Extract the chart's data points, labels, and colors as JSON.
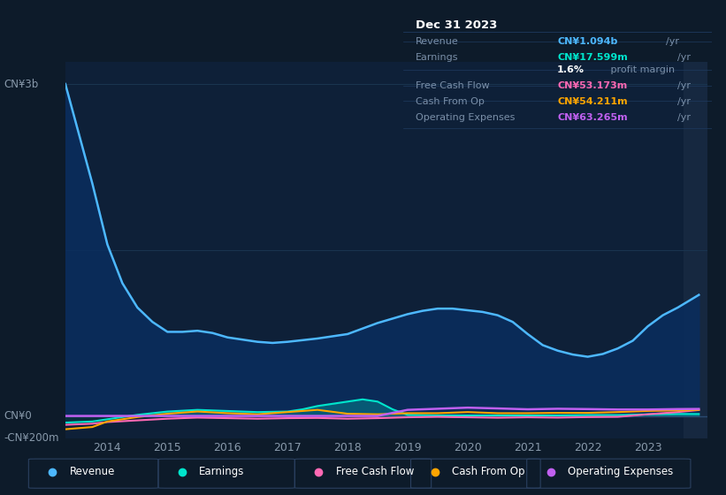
{
  "bg_color": "#0d1b2a",
  "plot_bg_color": "#0e2038",
  "right_panel_color": "#162840",
  "grid_color": "#1a3550",
  "title_box_bg": "#050d18",
  "title_box": {
    "date": "Dec 31 2023",
    "rows": [
      {
        "label": "Revenue",
        "value": "CN¥1.094b",
        "unit": "/yr",
        "value_color": "#4db8ff"
      },
      {
        "label": "Earnings",
        "value": "CN¥17.599m",
        "unit": "/yr",
        "value_color": "#00e5cc"
      },
      {
        "label": "",
        "value": "1.6%",
        "unit": " profit margin",
        "value_color": "#ffffff"
      },
      {
        "label": "Free Cash Flow",
        "value": "CN¥53.173m",
        "unit": "/yr",
        "value_color": "#ff69b4"
      },
      {
        "label": "Cash From Op",
        "value": "CN¥54.211m",
        "unit": "/yr",
        "value_color": "#ffa500"
      },
      {
        "label": "Operating Expenses",
        "value": "CN¥63.265m",
        "unit": "/yr",
        "value_color": "#c060f0"
      }
    ]
  },
  "ylabel_top": "CN¥3b",
  "ylabel_zero": "CN¥0",
  "ylabel_neg": "-CN¥200m",
  "legend": [
    {
      "label": "Revenue",
      "color": "#4db8ff"
    },
    {
      "label": "Earnings",
      "color": "#00e5cc"
    },
    {
      "label": "Free Cash Flow",
      "color": "#ff69b4"
    },
    {
      "label": "Cash From Op",
      "color": "#ffa500"
    },
    {
      "label": "Operating Expenses",
      "color": "#c060f0"
    }
  ],
  "x_ticks": [
    2014,
    2015,
    2016,
    2017,
    2018,
    2019,
    2020,
    2021,
    2022,
    2023
  ],
  "revenue": {
    "years": [
      2013.3,
      2013.5,
      2013.75,
      2014.0,
      2014.25,
      2014.5,
      2014.75,
      2015.0,
      2015.25,
      2015.5,
      2015.75,
      2016.0,
      2016.25,
      2016.5,
      2016.75,
      2017.0,
      2017.25,
      2017.5,
      2017.75,
      2018.0,
      2018.25,
      2018.5,
      2018.75,
      2019.0,
      2019.25,
      2019.5,
      2019.75,
      2020.0,
      2020.25,
      2020.5,
      2020.75,
      2021.0,
      2021.25,
      2021.5,
      2021.75,
      2022.0,
      2022.25,
      2022.5,
      2022.75,
      2023.0,
      2023.25,
      2023.5,
      2023.85
    ],
    "values": [
      3000,
      2600,
      2100,
      1550,
      1200,
      980,
      850,
      760,
      760,
      770,
      750,
      710,
      690,
      670,
      660,
      670,
      685,
      700,
      720,
      740,
      790,
      840,
      880,
      920,
      950,
      970,
      970,
      955,
      940,
      910,
      850,
      740,
      640,
      590,
      555,
      535,
      560,
      610,
      680,
      810,
      910,
      980,
      1094
    ]
  },
  "earnings": {
    "years": [
      2013.3,
      2013.75,
      2014.0,
      2014.5,
      2015.0,
      2015.5,
      2016.0,
      2016.5,
      2017.0,
      2017.25,
      2017.5,
      2017.75,
      2018.0,
      2018.25,
      2018.5,
      2018.75,
      2019.0,
      2019.5,
      2020.0,
      2020.5,
      2021.0,
      2021.5,
      2022.0,
      2022.5,
      2023.0,
      2023.5,
      2023.85
    ],
    "values": [
      -60,
      -50,
      -30,
      10,
      40,
      55,
      45,
      35,
      40,
      60,
      90,
      110,
      130,
      150,
      130,
      60,
      10,
      5,
      5,
      5,
      5,
      5,
      8,
      8,
      15,
      18,
      17.599
    ]
  },
  "free_cash_flow": {
    "years": [
      2013.3,
      2013.75,
      2014.0,
      2014.5,
      2015.0,
      2015.5,
      2016.0,
      2016.5,
      2017.0,
      2017.5,
      2018.0,
      2018.5,
      2019.0,
      2019.5,
      2020.0,
      2020.5,
      2021.0,
      2021.5,
      2022.0,
      2022.5,
      2023.0,
      2023.5,
      2023.85
    ],
    "values": [
      -80,
      -70,
      -55,
      -40,
      -25,
      -15,
      -20,
      -25,
      -20,
      -18,
      -25,
      -20,
      -12,
      -8,
      -12,
      -16,
      -12,
      -15,
      -10,
      -8,
      15,
      35,
      53.173
    ]
  },
  "cash_from_op": {
    "years": [
      2013.3,
      2013.75,
      2014.0,
      2014.5,
      2015.0,
      2015.5,
      2016.0,
      2016.5,
      2017.0,
      2017.5,
      2018.0,
      2018.5,
      2019.0,
      2019.5,
      2020.0,
      2020.5,
      2021.0,
      2021.5,
      2022.0,
      2022.5,
      2023.0,
      2023.5,
      2023.85
    ],
    "values": [
      -120,
      -100,
      -50,
      -10,
      20,
      40,
      25,
      15,
      35,
      55,
      20,
      15,
      25,
      25,
      35,
      25,
      25,
      28,
      28,
      35,
      45,
      50,
      54.211
    ]
  },
  "operating_expenses": {
    "years": [
      2013.3,
      2013.75,
      2014.0,
      2014.5,
      2015.0,
      2015.5,
      2016.0,
      2016.5,
      2017.0,
      2017.5,
      2018.0,
      2018.5,
      2019.0,
      2019.5,
      2020.0,
      2020.5,
      2021.0,
      2021.5,
      2022.0,
      2022.5,
      2023.0,
      2023.5,
      2023.85
    ],
    "values": [
      0,
      0,
      0,
      0,
      0,
      0,
      0,
      0,
      0,
      0,
      0,
      0,
      55,
      65,
      75,
      68,
      60,
      65,
      62,
      58,
      58,
      62,
      63.265
    ]
  },
  "x_min": 2013.3,
  "x_split": 2023.6,
  "x_max": 2024.0,
  "y_min": -200,
  "y_max": 3200
}
